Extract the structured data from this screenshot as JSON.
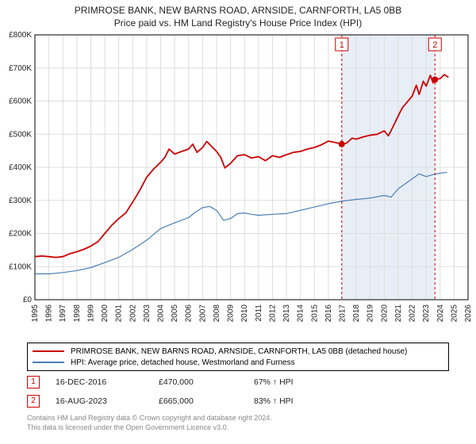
{
  "title_line1": "PRIMROSE BANK, NEW BARNS ROAD, ARNSIDE, CARNFORTH, LA5 0BB",
  "title_line2": "Price paid vs. HM Land Registry's House Price Index (HPI)",
  "chart": {
    "type": "line",
    "background_color": "#ffffff",
    "grid_color": "#dddddd",
    "shade_color": "#e8eef6",
    "border_color": "#000000",
    "xlim": [
      1995,
      2026
    ],
    "ylim": [
      0,
      800000
    ],
    "ytick_step": 100000,
    "ytick_labels": [
      "£0",
      "£100K",
      "£200K",
      "£300K",
      "£400K",
      "£500K",
      "£600K",
      "£700K",
      "£800K"
    ],
    "xtick_step": 1,
    "xtick_labels": [
      "1995",
      "1996",
      "1997",
      "1998",
      "1999",
      "2000",
      "2001",
      "2002",
      "2003",
      "2004",
      "2005",
      "2006",
      "2007",
      "2008",
      "2009",
      "2010",
      "2011",
      "2012",
      "2013",
      "2014",
      "2015",
      "2016",
      "2017",
      "2018",
      "2019",
      "2020",
      "2021",
      "2022",
      "2023",
      "2024",
      "2025",
      "2026"
    ],
    "shade_start_x": 2016.96,
    "shade_end_x": 2023.63,
    "series": [
      {
        "name": "primrose",
        "color": "#cc0000",
        "width": 1.8,
        "points": [
          [
            1995,
            130000
          ],
          [
            1995.5,
            132000
          ],
          [
            1996,
            130000
          ],
          [
            1996.5,
            128000
          ],
          [
            1997,
            130000
          ],
          [
            1997.5,
            139000
          ],
          [
            1998,
            145000
          ],
          [
            1998.5,
            152000
          ],
          [
            1999,
            162000
          ],
          [
            1999.5,
            175000
          ],
          [
            2000,
            200000
          ],
          [
            2000.5,
            225000
          ],
          [
            2001,
            245000
          ],
          [
            2001.5,
            262000
          ],
          [
            2002,
            295000
          ],
          [
            2002.5,
            330000
          ],
          [
            2003,
            370000
          ],
          [
            2003.5,
            395000
          ],
          [
            2004,
            415000
          ],
          [
            2004.3,
            430000
          ],
          [
            2004.6,
            455000
          ],
          [
            2005,
            440000
          ],
          [
            2005.5,
            448000
          ],
          [
            2006,
            455000
          ],
          [
            2006.3,
            470000
          ],
          [
            2006.6,
            445000
          ],
          [
            2007,
            460000
          ],
          [
            2007.3,
            478000
          ],
          [
            2007.6,
            465000
          ],
          [
            2008,
            448000
          ],
          [
            2008.3,
            430000
          ],
          [
            2008.6,
            398000
          ],
          [
            2009,
            412000
          ],
          [
            2009.5,
            435000
          ],
          [
            2010,
            438000
          ],
          [
            2010.5,
            428000
          ],
          [
            2011,
            432000
          ],
          [
            2011.5,
            420000
          ],
          [
            2012,
            435000
          ],
          [
            2012.5,
            430000
          ],
          [
            2013,
            438000
          ],
          [
            2013.5,
            445000
          ],
          [
            2014,
            448000
          ],
          [
            2014.5,
            455000
          ],
          [
            2015,
            460000
          ],
          [
            2015.5,
            468000
          ],
          [
            2016,
            479000
          ],
          [
            2016.5,
            475000
          ],
          [
            2016.96,
            470000
          ],
          [
            2017.3,
            473000
          ],
          [
            2017.7,
            488000
          ],
          [
            2018,
            485000
          ],
          [
            2018.5,
            492000
          ],
          [
            2019,
            497000
          ],
          [
            2019.5,
            500000
          ],
          [
            2020,
            510000
          ],
          [
            2020.3,
            495000
          ],
          [
            2020.6,
            520000
          ],
          [
            2021,
            555000
          ],
          [
            2021.3,
            580000
          ],
          [
            2021.6,
            595000
          ],
          [
            2022,
            615000
          ],
          [
            2022.3,
            648000
          ],
          [
            2022.5,
            620000
          ],
          [
            2022.8,
            660000
          ],
          [
            2023,
            645000
          ],
          [
            2023.3,
            678000
          ],
          [
            2023.5,
            655000
          ],
          [
            2023.63,
            665000
          ],
          [
            2024,
            668000
          ],
          [
            2024.3,
            680000
          ],
          [
            2024.6,
            672000
          ]
        ]
      },
      {
        "name": "hpi",
        "color": "#4a7fb5",
        "width": 1.2,
        "points": [
          [
            1995,
            78000
          ],
          [
            1996,
            78000
          ],
          [
            1997,
            82000
          ],
          [
            1998,
            88000
          ],
          [
            1999,
            97000
          ],
          [
            2000,
            112000
          ],
          [
            2001,
            128000
          ],
          [
            2002,
            152000
          ],
          [
            2003,
            180000
          ],
          [
            2004,
            215000
          ],
          [
            2005,
            232000
          ],
          [
            2006,
            248000
          ],
          [
            2006.5,
            265000
          ],
          [
            2007,
            278000
          ],
          [
            2007.5,
            282000
          ],
          [
            2008,
            270000
          ],
          [
            2008.5,
            240000
          ],
          [
            2009,
            245000
          ],
          [
            2009.5,
            260000
          ],
          [
            2010,
            262000
          ],
          [
            2010.5,
            258000
          ],
          [
            2011,
            255000
          ],
          [
            2012,
            258000
          ],
          [
            2013,
            260000
          ],
          [
            2014,
            270000
          ],
          [
            2015,
            280000
          ],
          [
            2016,
            290000
          ],
          [
            2017,
            298000
          ],
          [
            2018,
            303000
          ],
          [
            2019,
            307000
          ],
          [
            2020,
            315000
          ],
          [
            2020.5,
            310000
          ],
          [
            2021,
            335000
          ],
          [
            2021.5,
            350000
          ],
          [
            2022,
            365000
          ],
          [
            2022.5,
            380000
          ],
          [
            2023,
            372000
          ],
          [
            2023.5,
            378000
          ],
          [
            2024,
            382000
          ],
          [
            2024.5,
            385000
          ]
        ]
      }
    ],
    "markers": [
      {
        "label": "1",
        "x": 2016.96,
        "y": 470000,
        "box_color": "#cc0000",
        "dot_color": "#cc0000"
      },
      {
        "label": "2",
        "x": 2023.63,
        "y": 665000,
        "box_color": "#cc0000",
        "dot_color": "#cc0000"
      }
    ]
  },
  "legend": {
    "rows": [
      {
        "color": "#cc0000",
        "label": "PRIMROSE BANK, NEW BARNS ROAD, ARNSIDE, CARNFORTH, LA5 0BB (detached house)"
      },
      {
        "color": "#4a7fb5",
        "label": "HPI: Average price, detached house, Westmorland and Furness"
      }
    ]
  },
  "marker_rows": [
    {
      "num": "1",
      "date": "16-DEC-2016",
      "price": "£470,000",
      "hpi": "67% ↑ HPI"
    },
    {
      "num": "2",
      "date": "16-AUG-2023",
      "price": "£665,000",
      "hpi": "83% ↑ HPI"
    }
  ],
  "footer_line1": "Contains HM Land Registry data © Crown copyright and database right 2024.",
  "footer_line2": "This data is licensed under the Open Government Licence v3.0."
}
